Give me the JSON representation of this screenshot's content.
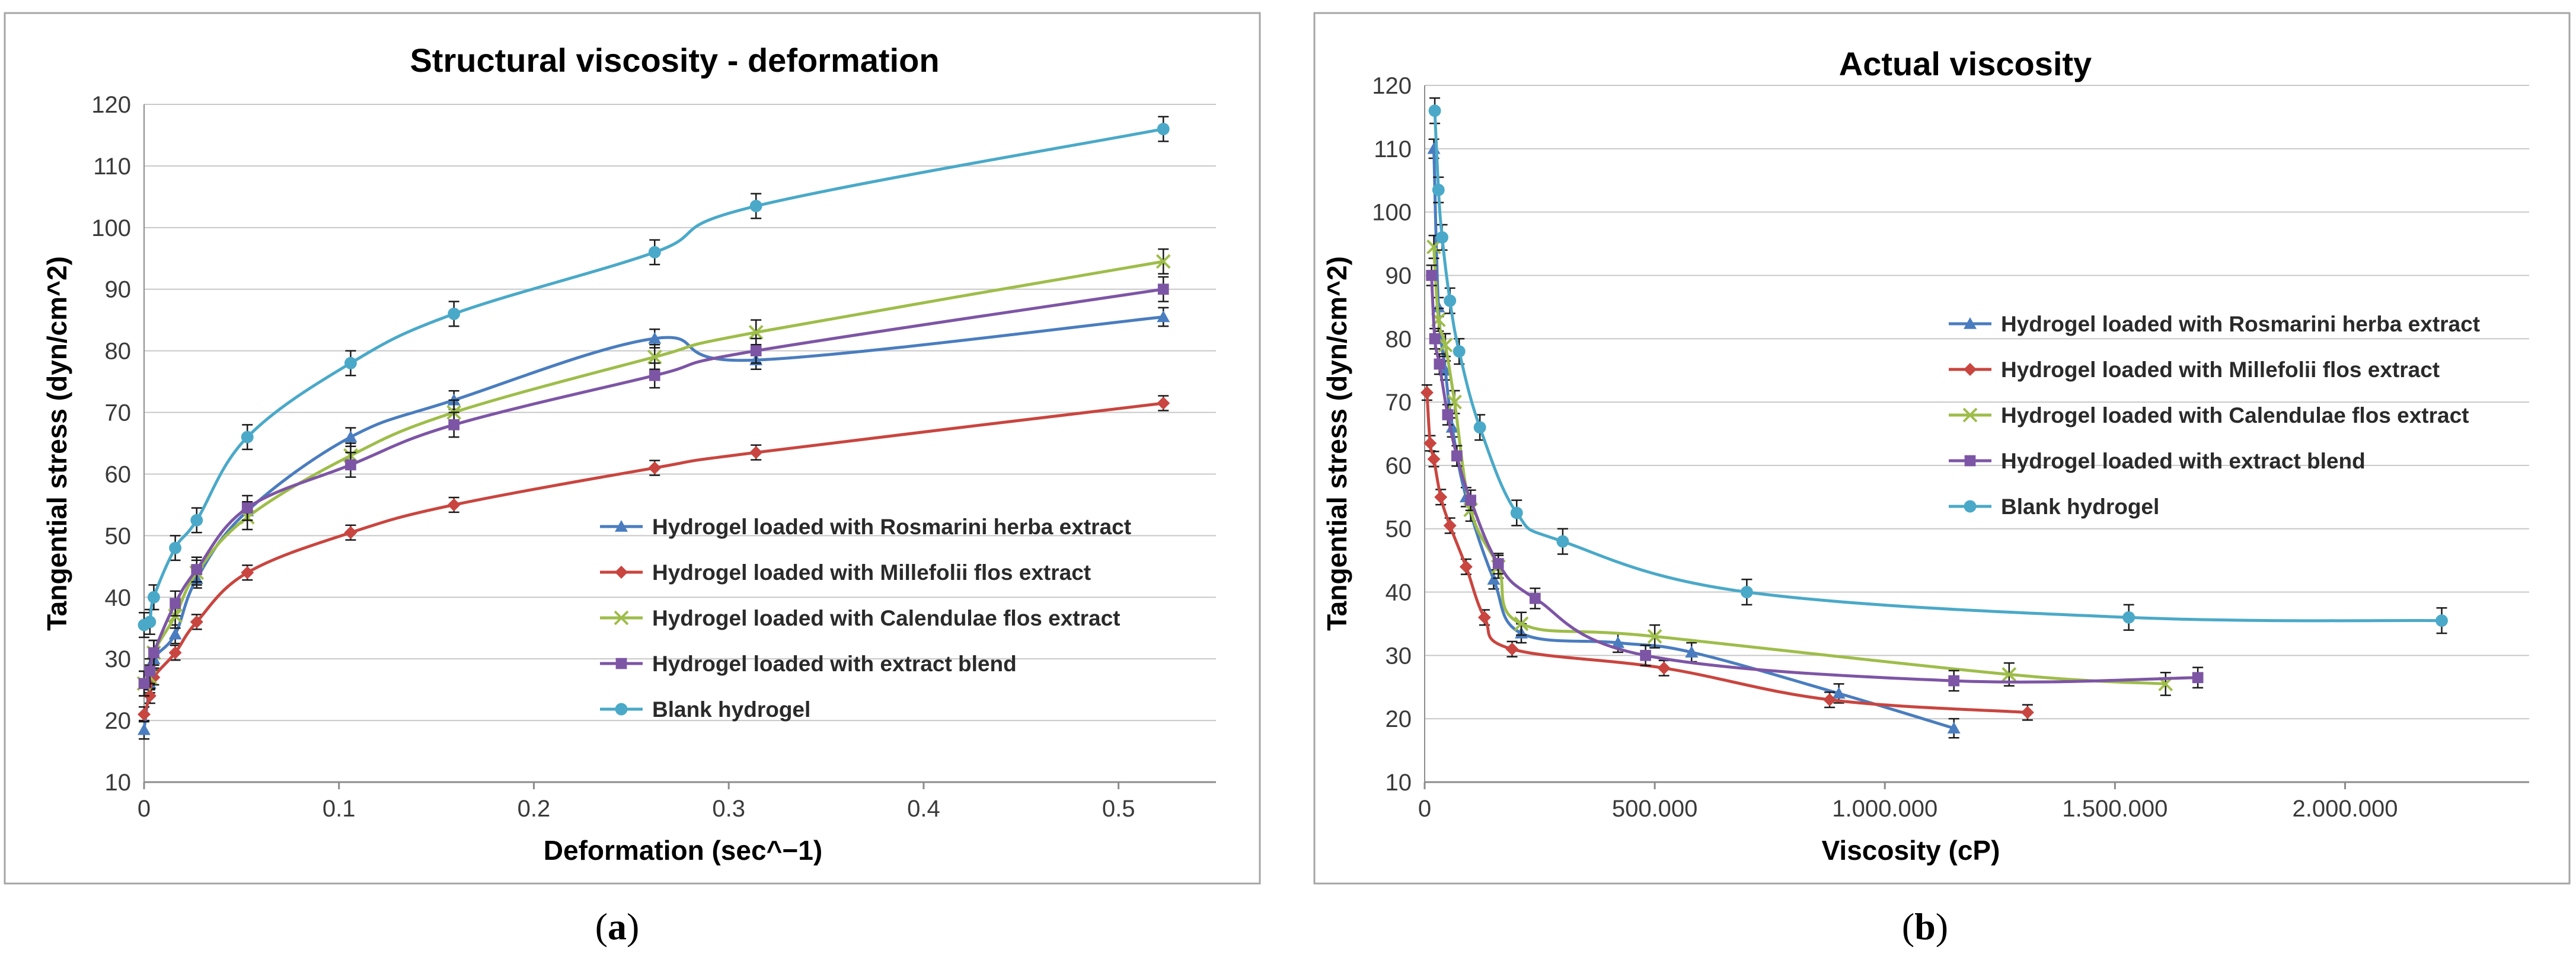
{
  "colors": {
    "rosmarini": "#4a7dbf",
    "millefolii": "#c9453f",
    "calendulae": "#9ebd4a",
    "blend": "#7d55a5",
    "blank": "#4aa9c8",
    "grid": "#c8c8c8",
    "frame": "#a6a6a6"
  },
  "chart_data": [
    {
      "type": "line",
      "panel": "a",
      "caption_open": "(",
      "caption_letter": "a",
      "caption_close": ")",
      "title": "Structural viscosity - deformation",
      "xlabel": "Deformation (sec^−1)",
      "ylabel": "Tangential stress (dyn/cm^2)",
      "xlim": [
        0,
        0.55
      ],
      "ylim": [
        10,
        120
      ],
      "xticks": [
        0,
        0.1,
        0.2,
        0.3,
        0.4,
        0.5
      ],
      "xtick_labels": [
        "0",
        "0.1",
        "0.2",
        "0.3",
        "0.4",
        "0.5"
      ],
      "yticks": [
        10,
        20,
        30,
        40,
        50,
        60,
        70,
        80,
        90,
        100,
        110,
        120
      ],
      "ytick_labels": [
        "10",
        "20",
        "30",
        "40",
        "50",
        "60",
        "70",
        "80",
        "90",
        "100",
        "110",
        "120"
      ],
      "legend_position": "center-right",
      "series": [
        {
          "name": "Hydrogel loaded with Rosmarini herba extract",
          "color_key": "rosmarini",
          "marker": "triangle",
          "x": [
            0.0,
            0.003,
            0.005,
            0.016,
            0.027,
            0.053,
            0.106,
            0.159,
            0.262,
            0.314,
            0.523
          ],
          "y": [
            18.5,
            26,
            30,
            34,
            43,
            54,
            66,
            72,
            82,
            78.5,
            85.5
          ],
          "err": 1.5
        },
        {
          "name": "Hydrogel loaded with Millefolii flos extract",
          "color_key": "millefolii",
          "marker": "diamond",
          "x": [
            0.0,
            0.003,
            0.005,
            0.016,
            0.027,
            0.053,
            0.106,
            0.159,
            0.262,
            0.314,
            0.523
          ],
          "y": [
            21,
            24,
            27,
            31,
            36,
            44,
            50.5,
            55,
            61,
            63.5,
            71.5
          ],
          "err": 1.2
        },
        {
          "name": "Hydrogel loaded with Calendulae flos extract",
          "color_key": "calendulae",
          "marker": "x",
          "x": [
            0.0,
            0.003,
            0.005,
            0.016,
            0.027,
            0.053,
            0.106,
            0.159,
            0.262,
            0.314,
            0.523
          ],
          "y": [
            26,
            27,
            31,
            37,
            44,
            53,
            63,
            70,
            79,
            83,
            94.5
          ],
          "err": 2.0
        },
        {
          "name": "Hydrogel loaded with extract blend",
          "color_key": "blend",
          "marker": "square",
          "x": [
            0.0,
            0.003,
            0.005,
            0.016,
            0.027,
            0.053,
            0.106,
            0.159,
            0.262,
            0.314,
            0.523
          ],
          "y": [
            26,
            28,
            31,
            39,
            44.5,
            54.5,
            61.5,
            68,
            76,
            80,
            90
          ],
          "err": 2.0
        },
        {
          "name": "Blank hydrogel",
          "color_key": "blank",
          "marker": "circle",
          "x": [
            0.0,
            0.003,
            0.005,
            0.016,
            0.027,
            0.053,
            0.106,
            0.159,
            0.262,
            0.314,
            0.523
          ],
          "y": [
            35.5,
            36,
            40,
            48,
            52.5,
            66,
            78,
            86,
            96,
            103.5,
            116
          ],
          "err": 2.0
        }
      ]
    },
    {
      "type": "line",
      "panel": "b",
      "caption_open": "(",
      "caption_letter": "b",
      "caption_close": ")",
      "title": "Actual viscosity",
      "xlabel": "Viscosity (cP)",
      "ylabel": "Tangential stress (dyn/cm^2)",
      "xlim": [
        0,
        2400000
      ],
      "ylim": [
        10,
        120
      ],
      "xticks": [
        0,
        500000,
        1000000,
        1500000,
        2000000
      ],
      "xtick_labels": [
        "0",
        "500.000",
        "1.000.000",
        "1.500.000",
        "2.000.000"
      ],
      "yticks": [
        10,
        20,
        30,
        40,
        50,
        60,
        70,
        80,
        90,
        100,
        110,
        120
      ],
      "ytick_labels": [
        "10",
        "20",
        "30",
        "40",
        "50",
        "60",
        "70",
        "80",
        "90",
        "100",
        "110",
        "120"
      ],
      "legend_position": "top-right",
      "series": [
        {
          "name": "Hydrogel loaded with Rosmarini herba extract",
          "color_key": "rosmarini",
          "marker": "triangle",
          "x": [
            20000,
            30000,
            45000,
            60000,
            90000,
            150000,
            210000,
            420000,
            580000,
            900000,
            1150000
          ],
          "y": [
            110,
            85,
            75,
            66,
            55,
            42,
            33.5,
            32,
            30.5,
            24,
            18.5
          ],
          "err": 1.5
        },
        {
          "name": "Hydrogel loaded with Millefolii flos extract",
          "color_key": "millefolii",
          "marker": "diamond",
          "x": [
            5000,
            12000,
            20000,
            35000,
            55000,
            90000,
            130000,
            190000,
            520000,
            880000,
            1310000
          ],
          "y": [
            71.5,
            63.5,
            61,
            55,
            50.5,
            44,
            36,
            31,
            28,
            23,
            21
          ],
          "err": 1.2
        },
        {
          "name": "Hydrogel loaded with Calendulae flos extract",
          "color_key": "calendulae",
          "marker": "x",
          "x": [
            20000,
            30000,
            45000,
            65000,
            100000,
            160000,
            210000,
            500000,
            1270000,
            1610000
          ],
          "y": [
            94.5,
            83,
            79,
            70,
            53,
            44,
            35,
            33,
            27,
            25.5
          ],
          "err": 1.8
        },
        {
          "name": "Hydrogel loaded with extract blend",
          "color_key": "blend",
          "marker": "square",
          "x": [
            15000,
            22000,
            32000,
            50000,
            70000,
            100000,
            160000,
            240000,
            480000,
            1150000,
            1680000
          ],
          "y": [
            90,
            80,
            76,
            68,
            61.5,
            54.5,
            44.5,
            39,
            30,
            26,
            26.5
          ],
          "err": 1.6
        },
        {
          "name": "Blank hydrogel",
          "color_key": "blank",
          "marker": "circle",
          "x": [
            22000,
            30000,
            38000,
            55000,
            75000,
            120000,
            200000,
            300000,
            700000,
            1530000,
            2210000
          ],
          "y": [
            116,
            103.5,
            96,
            86,
            78,
            66,
            52.5,
            48,
            40,
            36,
            35.5
          ],
          "err": 2.0
        }
      ]
    }
  ]
}
